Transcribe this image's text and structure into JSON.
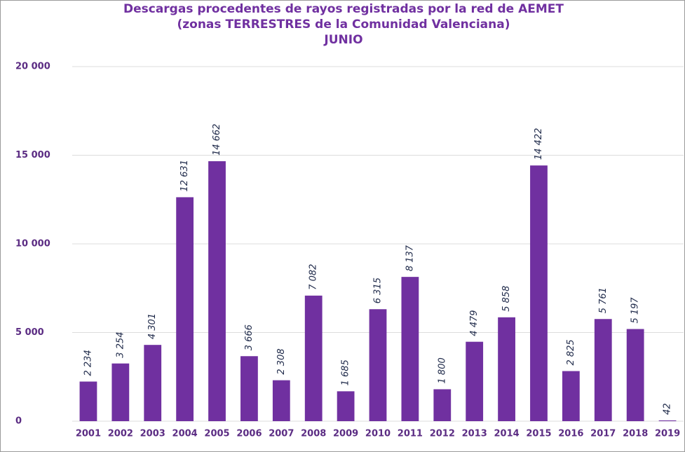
{
  "chart_data": {
    "type": "bar",
    "title": [
      "Descargas procedentes de rayos registradas por la red de AEMET",
      "(zonas TERRESTRES de la Comunidad Valenciana)",
      "JUNIO"
    ],
    "categories": [
      "2001",
      "2002",
      "2003",
      "2004",
      "2005",
      "2006",
      "2007",
      "2008",
      "2009",
      "2010",
      "2011",
      "2012",
      "2013",
      "2014",
      "2015",
      "2016",
      "2017",
      "2018",
      "2019"
    ],
    "values": [
      2234,
      3254,
      4301,
      12631,
      14662,
      3666,
      2308,
      7082,
      1685,
      6315,
      8137,
      1800,
      4479,
      5858,
      14422,
      2825,
      5761,
      5197,
      42
    ],
    "value_labels": [
      "2 234",
      "3 254",
      "4 301",
      "12 631",
      "14 662",
      "3 666",
      "2 308",
      "7 082",
      "1 685",
      "6 315",
      "8 137",
      "1 800",
      "4 479",
      "5 858",
      "14 422",
      "2 825",
      "5 761",
      "5 197",
      "42"
    ],
    "color": "#7030a0",
    "ylim": [
      0,
      20000
    ],
    "yticks": [
      0,
      {
        "value": 5000,
        "label": "5 000"
      },
      {
        "value": 10000,
        "label": "10 000"
      },
      {
        "value": 15000,
        "label": "15 000"
      },
      {
        "value": 20000,
        "label": "20 000"
      }
    ],
    "grid": true
  }
}
